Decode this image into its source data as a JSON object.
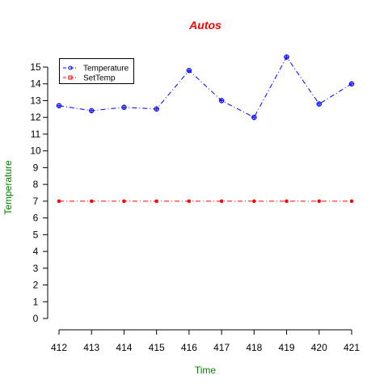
{
  "chart_data": {
    "type": "line",
    "title": "Autos",
    "xlabel": "Time",
    "ylabel": "Temperature",
    "x": [
      412,
      413,
      414,
      415,
      416,
      417,
      418,
      419,
      420,
      421
    ],
    "xlim": [
      412,
      421
    ],
    "ylim": [
      0,
      15
    ],
    "yticks": [
      0,
      1,
      2,
      3,
      4,
      5,
      6,
      7,
      8,
      9,
      10,
      11,
      12,
      13,
      14,
      15
    ],
    "grid": false,
    "legend_position": "top-left",
    "series": [
      {
        "name": "Temperature",
        "values": [
          12.7,
          12.4,
          12.6,
          12.5,
          14.8,
          13.0,
          12.0,
          15.6,
          12.8,
          14.0
        ],
        "color": "#0000ff",
        "marker": "circle-plus"
      },
      {
        "name": "SetTemp",
        "values": [
          7,
          7,
          7,
          7,
          7,
          7,
          7,
          7,
          7,
          7
        ],
        "color": "#ff0000",
        "marker": "dot"
      }
    ],
    "colors": {
      "title": "#ff0000",
      "axis_titles": "#008000"
    }
  }
}
